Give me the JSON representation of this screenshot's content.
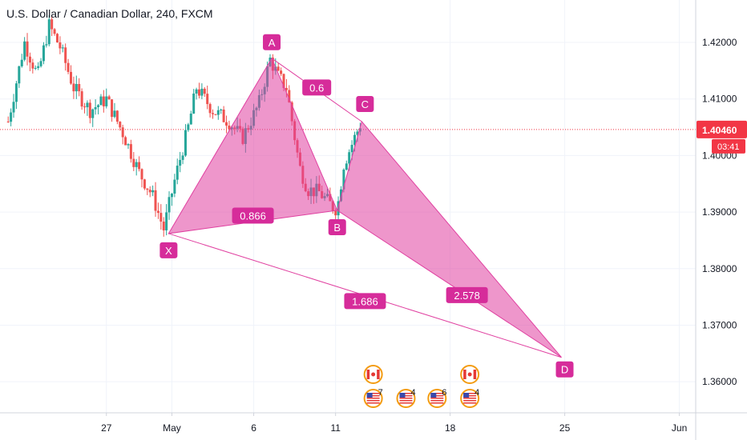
{
  "chart_data": {
    "type": "candlestick",
    "title": "U.S. Dollar / Canadian Dollar, 240, FXCM",
    "ylim": [
      1.3545,
      1.4275
    ],
    "y_ticks": [
      {
        "value": 1.36,
        "label": "1.36000"
      },
      {
        "value": 1.37,
        "label": "1.37000"
      },
      {
        "value": 1.38,
        "label": "1.38000"
      },
      {
        "value": 1.39,
        "label": "1.39000"
      },
      {
        "value": 1.4,
        "label": "1.40000"
      },
      {
        "value": 1.41,
        "label": "1.41000"
      },
      {
        "value": 1.42,
        "label": "1.42000"
      }
    ],
    "x_ticks": [
      {
        "day": 27,
        "label": "27"
      },
      {
        "day": 31,
        "label": "May"
      },
      {
        "day": 36,
        "label": "6"
      },
      {
        "day": 41,
        "label": "11"
      },
      {
        "day": 48,
        "label": "18"
      },
      {
        "day": 55,
        "label": "25"
      },
      {
        "day": 62,
        "label": "Jun"
      }
    ],
    "x_range_days": [
      20.5,
      63
    ],
    "last_price": {
      "value": 1.4046,
      "label": "1.40460",
      "countdown": "03:41",
      "color": "#f23645"
    },
    "candle_colors": {
      "up": "#26a69a",
      "down": "#ef5350"
    },
    "candle_keypoints": [
      [
        21.0,
        1.406
      ],
      [
        22.0,
        1.42
      ],
      [
        22.8,
        1.414
      ],
      [
        23.5,
        1.423
      ],
      [
        24.2,
        1.419
      ],
      [
        25.0,
        1.412
      ],
      [
        26.0,
        1.408
      ],
      [
        27.0,
        1.41
      ],
      [
        28.0,
        1.404
      ],
      [
        29.0,
        1.397
      ],
      [
        29.8,
        1.393
      ],
      [
        30.5,
        1.387
      ],
      [
        31.2,
        1.396
      ],
      [
        32.0,
        1.405
      ],
      [
        32.5,
        1.412
      ],
      [
        33.5,
        1.408
      ],
      [
        34.5,
        1.406
      ],
      [
        35.3,
        1.403
      ],
      [
        36.3,
        1.409
      ],
      [
        37.0,
        1.417
      ],
      [
        37.5,
        1.414
      ],
      [
        38.0,
        1.412
      ],
      [
        38.8,
        1.398
      ],
      [
        39.3,
        1.394
      ],
      [
        40.0,
        1.3935
      ],
      [
        40.8,
        1.391
      ],
      [
        41.1,
        1.3905
      ],
      [
        41.5,
        1.3985
      ],
      [
        42.0,
        1.402
      ],
      [
        42.5,
        1.4055
      ]
    ],
    "harmonic_pattern": {
      "color": "#e040a0",
      "points": [
        {
          "label": "X",
          "day": 30.8,
          "price": 1.3862
        },
        {
          "label": "A",
          "day": 37.1,
          "price": 1.4172
        },
        {
          "label": "B",
          "day": 41.1,
          "price": 1.3903
        },
        {
          "label": "C",
          "day": 42.6,
          "price": 1.406
        },
        {
          "label": "D",
          "day": 54.8,
          "price": 1.3643
        }
      ],
      "ratios": [
        {
          "label": "0.6"
        },
        {
          "label": "0.866"
        },
        {
          "label": "2.578"
        },
        {
          "label": "1.686"
        }
      ]
    },
    "events": [
      {
        "day": 43.3,
        "flags": [
          "ca",
          "us"
        ],
        "count": "7"
      },
      {
        "day": 45.3,
        "flags": [
          "us"
        ],
        "count": "4"
      },
      {
        "day": 47.2,
        "flags": [
          "us"
        ],
        "count": "6"
      },
      {
        "day": 49.2,
        "flags": [
          "ca",
          "us"
        ],
        "count": "4"
      }
    ]
  }
}
